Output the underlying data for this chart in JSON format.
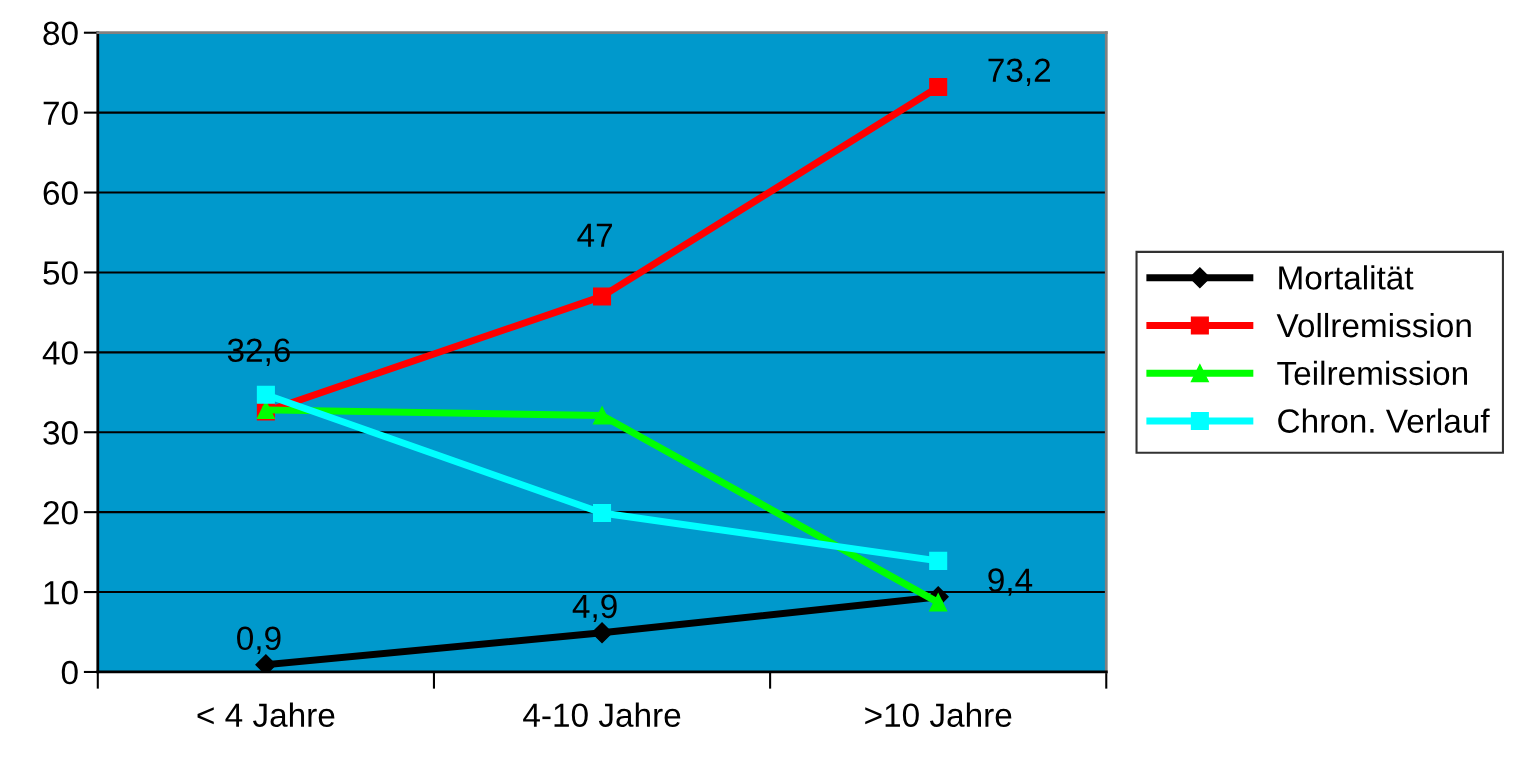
{
  "chart_data": {
    "type": "line",
    "categories": [
      "< 4 Jahre",
      "4-10 Jahre",
      ">10 Jahre"
    ],
    "series": [
      {
        "name": "Mortalität",
        "color": "#000000",
        "marker": "diamond",
        "values": [
          0.9,
          4.9,
          9.4
        ],
        "value_labels": [
          "0,9",
          "4,9",
          "9,4"
        ]
      },
      {
        "name": "Vollremission",
        "color": "#ff0000",
        "marker": "square",
        "values": [
          32.6,
          47,
          73.2
        ],
        "value_labels": [
          "32,6",
          "47",
          "73,2"
        ]
      },
      {
        "name": "Teilremission",
        "color": "#00ff00",
        "marker": "triangle",
        "values": [
          32.8,
          32.1,
          8.7
        ]
      },
      {
        "name": "Chron. Verlauf",
        "color": "#00ffff",
        "marker": "square",
        "values": [
          34.7,
          19.9,
          13.9
        ]
      }
    ],
    "ylim": [
      0,
      80
    ],
    "yticks": [
      0,
      10,
      20,
      30,
      40,
      50,
      60,
      70,
      80
    ],
    "grid": "y",
    "legend": "right"
  }
}
